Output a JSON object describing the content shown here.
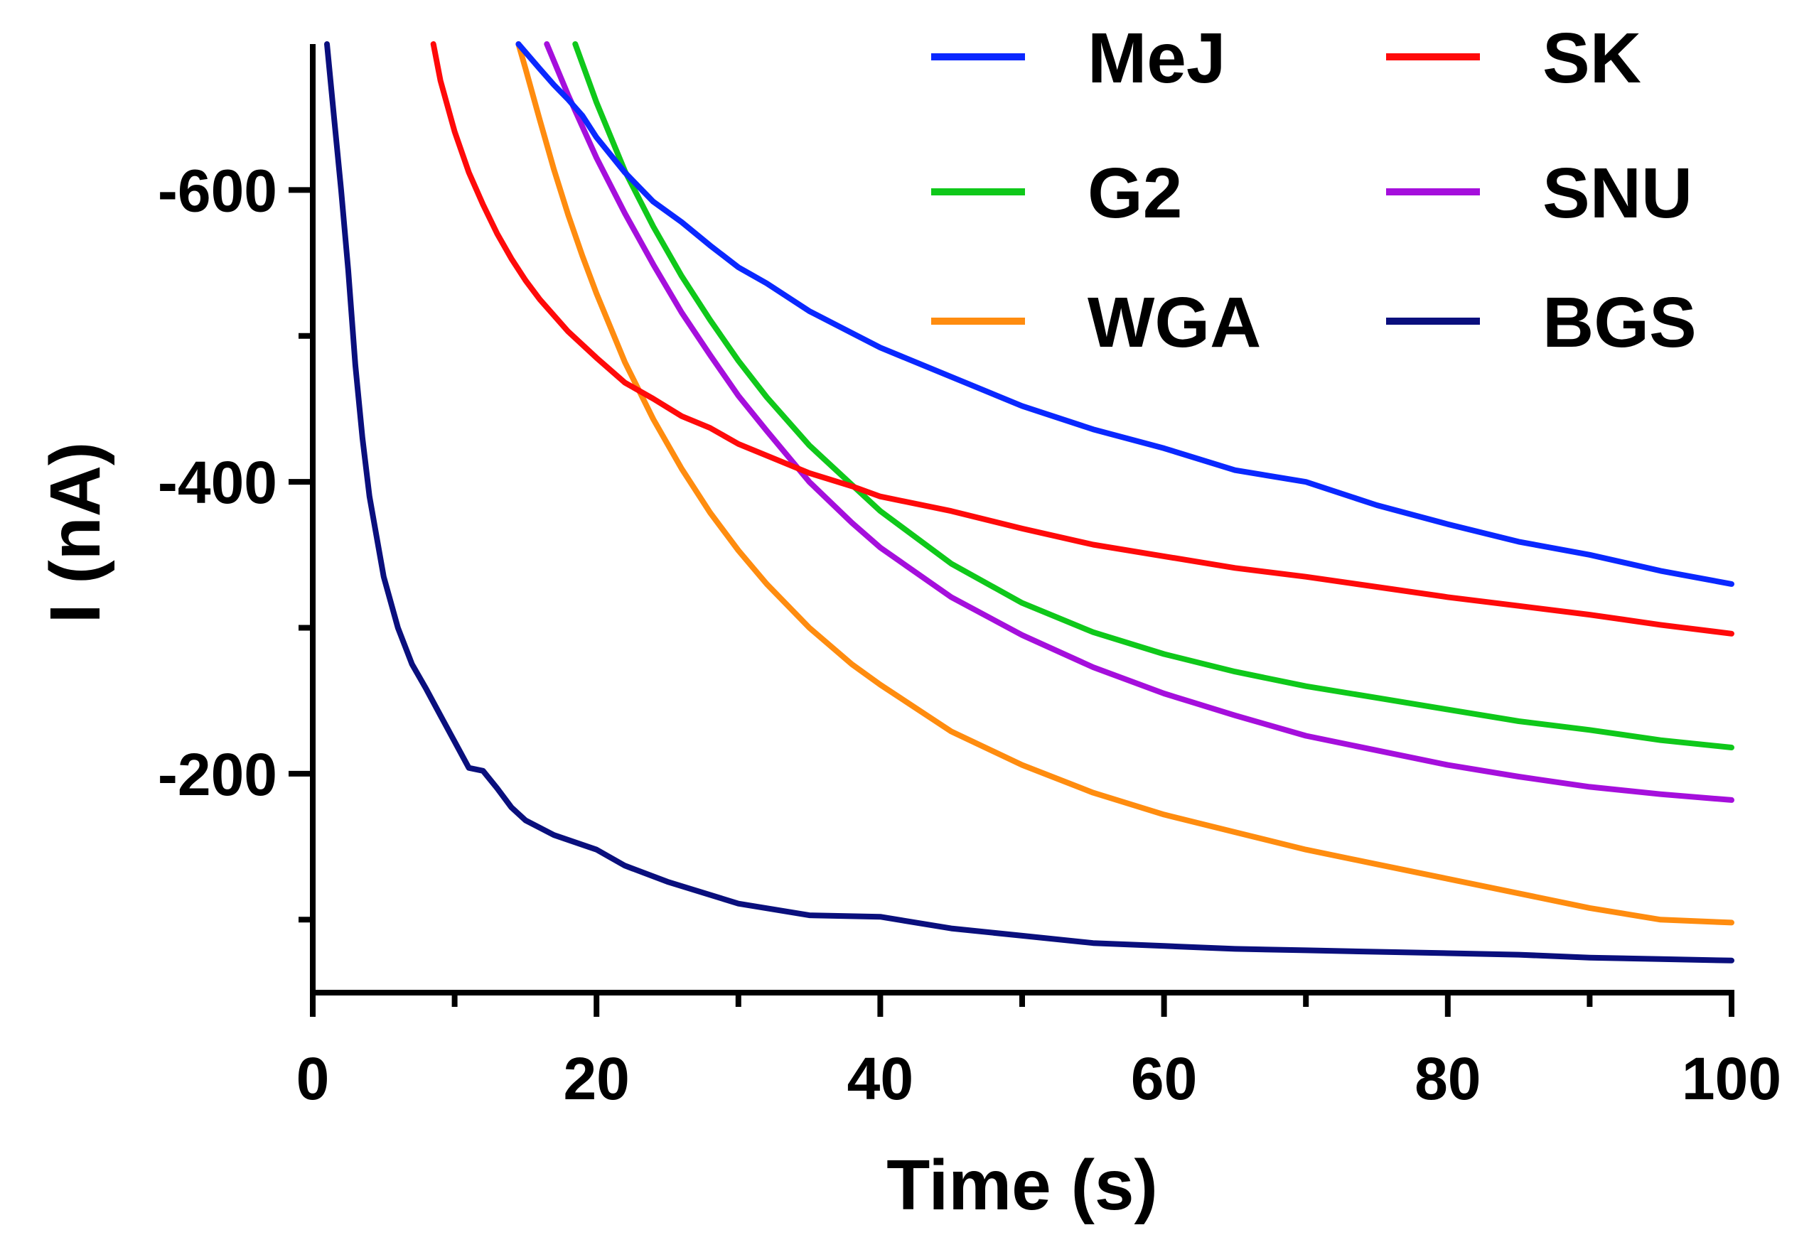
{
  "chart_data": {
    "type": "line",
    "title": "",
    "xlabel": "Time (s)",
    "ylabel": "I (nA)",
    "xlim": [
      0,
      100
    ],
    "ylim": [
      -50,
      -700
    ],
    "x_major_ticks": [
      0,
      20,
      40,
      60,
      80,
      100
    ],
    "x_minor_ticks": [
      10,
      30,
      50,
      70,
      90
    ],
    "y_major_ticks": [
      -600,
      -400,
      -200
    ],
    "y_minor_ticks": [
      -500,
      -300,
      -100
    ],
    "x_tick_labels": [
      "0",
      "20",
      "40",
      "60",
      "80",
      "100"
    ],
    "y_tick_labels": [
      "-600",
      "-400",
      "-200"
    ],
    "legend_position": "top-right",
    "series": [
      {
        "name": "MeJ",
        "color": "#0a28ff",
        "x": [
          14.5,
          16,
          17,
          18,
          19,
          20,
          22,
          24,
          26,
          28,
          30,
          32,
          35,
          38,
          40,
          45,
          50,
          55,
          60,
          65,
          70,
          75,
          80,
          85,
          90,
          95,
          100
        ],
        "y": [
          -700,
          -683,
          -672,
          -662,
          -651,
          -636,
          -612,
          -592,
          -578,
          -562,
          -547,
          -536,
          -517,
          -502,
          -492,
          -472,
          -452,
          -436,
          -423,
          -408,
          -400,
          -384,
          -371,
          -359,
          -350,
          -339,
          -330
        ]
      },
      {
        "name": "SK",
        "color": "#ff0a0a",
        "x": [
          8.5,
          9,
          10,
          11,
          12,
          13,
          14,
          15,
          16,
          18,
          20,
          22,
          24,
          26,
          28,
          30,
          32,
          35,
          38,
          40,
          45,
          50,
          55,
          60,
          65,
          70,
          75,
          80,
          85,
          90,
          95,
          100
        ],
        "y": [
          -700,
          -675,
          -640,
          -612,
          -590,
          -570,
          -553,
          -538,
          -525,
          -503,
          -485,
          -468,
          -457,
          -445,
          -437,
          -426,
          -418,
          -406,
          -397,
          -390,
          -380,
          -368,
          -357,
          -349,
          -341,
          -335,
          -328,
          -321,
          -315,
          -309,
          -302,
          -296
        ]
      },
      {
        "name": "G2",
        "color": "#0fc81a",
        "x": [
          18.5,
          20,
          22,
          24,
          26,
          28,
          30,
          32,
          35,
          38,
          40,
          45,
          50,
          55,
          60,
          65,
          70,
          75,
          80,
          85,
          90,
          95,
          100
        ],
        "y": [
          -700,
          -660,
          -613,
          -575,
          -541,
          -511,
          -483,
          -458,
          -425,
          -398,
          -380,
          -344,
          -317,
          -297,
          -282,
          -270,
          -260,
          -252,
          -244,
          -236,
          -230,
          -223,
          -218
        ]
      },
      {
        "name": "SNU",
        "color": "#a50fdc",
        "x": [
          16.5,
          18,
          20,
          22,
          24,
          26,
          28,
          30,
          32,
          35,
          38,
          40,
          45,
          50,
          55,
          60,
          62,
          65,
          70,
          75,
          80,
          85,
          90,
          95,
          100
        ],
        "y": [
          -700,
          -665,
          -622,
          -584,
          -549,
          -516,
          -487,
          -459,
          -435,
          -400,
          -372,
          -355,
          -321,
          -295,
          -273,
          -255,
          -249,
          -240,
          -226,
          -216,
          -206,
          -198,
          -191,
          -186,
          -182
        ]
      },
      {
        "name": "WGA",
        "color": "#ff8c0f",
        "x": [
          14.5,
          15,
          16,
          17,
          18,
          19,
          20,
          22,
          24,
          26,
          28,
          30,
          32,
          35,
          38,
          40,
          45,
          50,
          55,
          60,
          65,
          70,
          75,
          80,
          85,
          90,
          95,
          100
        ],
        "y": [
          -700,
          -683,
          -648,
          -614,
          -583,
          -555,
          -529,
          -482,
          -443,
          -409,
          -379,
          -353,
          -330,
          -300,
          -275,
          -261,
          -229,
          -206,
          -187,
          -172,
          -160,
          -148,
          -138,
          -128,
          -118,
          -108,
          -100,
          -98
        ]
      },
      {
        "name": "BGS",
        "color": "#0a0f7d",
        "x": [
          1,
          1.5,
          2,
          2.5,
          3,
          3.5,
          4,
          5,
          6,
          7,
          8,
          9,
          10,
          11,
          12,
          13,
          14,
          15,
          17,
          20,
          22,
          25,
          30,
          35,
          40,
          45,
          50,
          55,
          60,
          65,
          70,
          75,
          80,
          85,
          90,
          95,
          100
        ],
        "y": [
          -700,
          -650,
          -600,
          -545,
          -480,
          -430,
          -390,
          -335,
          -300,
          -275,
          -258,
          -240,
          -222,
          -204,
          -202,
          -190,
          -177,
          -168,
          -158,
          -148,
          -137,
          -126,
          -111,
          -103,
          -102,
          -94,
          -89,
          -84,
          -82,
          -80,
          -79,
          -78,
          -77,
          -76,
          -74,
          -73,
          -72
        ]
      }
    ]
  }
}
